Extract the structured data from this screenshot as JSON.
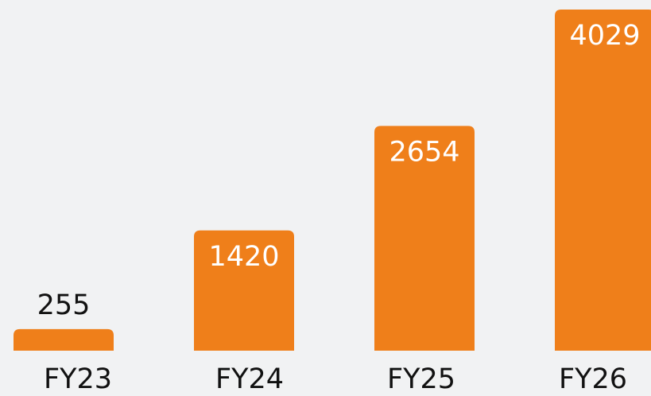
{
  "chart_data": {
    "type": "bar",
    "categories": [
      "FY23",
      "FY24",
      "FY25",
      "FY26"
    ],
    "values": [
      255,
      1420,
      2654,
      4029
    ],
    "color": "#ef7f1a"
  }
}
